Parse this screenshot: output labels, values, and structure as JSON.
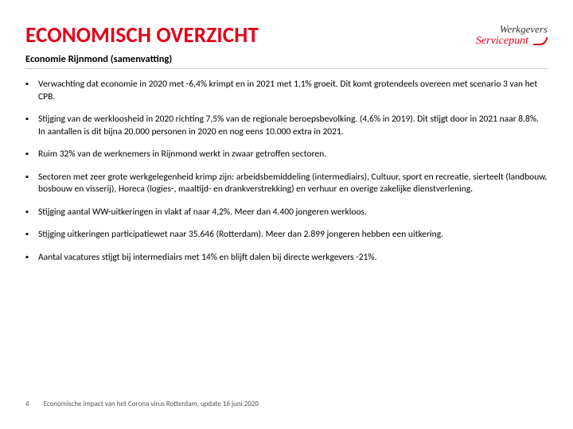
{
  "colors": {
    "accent": "#e2001a",
    "text": "#000000",
    "muted": "#555555",
    "rule": "#cccccc",
    "background": "#ffffff"
  },
  "typography": {
    "title_fontsize": 27,
    "subtitle_fontsize": 12.5,
    "body_fontsize": 11.5,
    "footer_fontsize": 9
  },
  "header": {
    "title": "ECONOMISCH OVERZICHT",
    "logo_top": "Werkgevers",
    "logo_bottom": "Servicepunt"
  },
  "subtitle": "Economie Rijnmond (samenvatting)",
  "bullets": [
    "Verwachting dat economie in 2020 met -6,4% krimpt en in 2021 met 1,1% groeit. Dit komt grotendeels overeen met scenario 3 van het CPB.",
    "Stijging van de werkloosheid in 2020 richting 7,5% van de regionale beroepsbevolking. (4,6% in 2019). Dit stijgt door in 2021 naar 8,8%. In aantallen is dit bijna 20.000 personen in 2020 en nog eens 10.000 extra in 2021.",
    "Ruim 32% van de werknemers in Rijnmond werkt in zwaar getroffen sectoren.",
    "Sectoren met zeer grote werkgelegenheid krimp zijn: arbeidsbemiddeling (intermediairs), Cultuur, sport en recreatie, sierteelt (landbouw, bosbouw en visserij), Horeca (logies-, maaltijd- en drankverstrekking) en verhuur en overige zakelijke dienstverlening.",
    "Stijging aantal WW-uitkeringen in vlakt af naar 4,2%. Meer dan 4.400 jongeren werkloos.",
    "Stijging uitkeringen participatiewet naar 35.646 (Rotterdam). Meer dan 2.899 jongeren hebben een uitkering.",
    "Aantal vacatures stijgt bij intermediairs met 14% en blijft dalen bij directe werkgevers -21%."
  ],
  "footer": {
    "page_number": "4",
    "caption": "Economische impact van het Corona virus Rotterdam, update 16 juni 2020"
  }
}
